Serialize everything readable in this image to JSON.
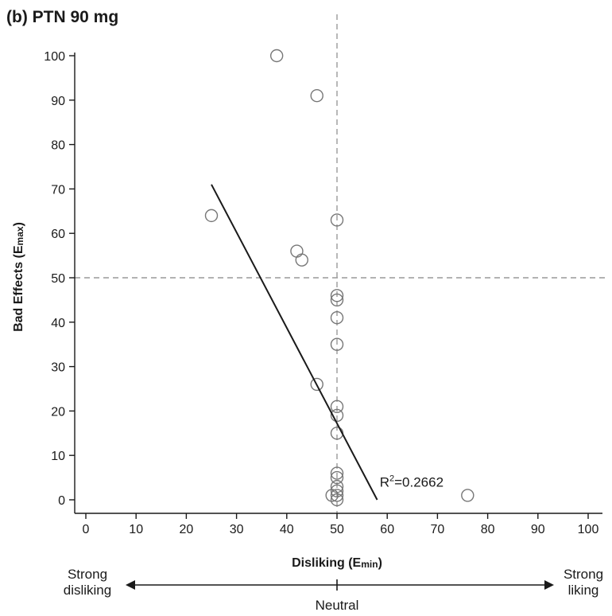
{
  "chart_data": {
    "type": "scatter",
    "title": "(b) PTN 90 mg",
    "xlabel": {
      "main": "Disliking (E",
      "sub": "min",
      "end": ")"
    },
    "ylabel": {
      "main": "Bad Effects (E",
      "sub": "max",
      "end": ")"
    },
    "xlim": [
      0,
      100
    ],
    "ylim": [
      0,
      100
    ],
    "x_ticks": [
      "0",
      "10",
      "20",
      "30",
      "40",
      "50",
      "60",
      "70",
      "80",
      "90",
      "100"
    ],
    "y_ticks": [
      "0",
      "10",
      "20",
      "30",
      "40",
      "50",
      "60",
      "70",
      "80",
      "90",
      "100"
    ],
    "reference_lines": {
      "x": 50,
      "y": 50
    },
    "points": [
      [
        38,
        100
      ],
      [
        46,
        91
      ],
      [
        25,
        64
      ],
      [
        50,
        63
      ],
      [
        42,
        56
      ],
      [
        43,
        54
      ],
      [
        50,
        46
      ],
      [
        50,
        45
      ],
      [
        50,
        41
      ],
      [
        50,
        35
      ],
      [
        46,
        26
      ],
      [
        50,
        21
      ],
      [
        50,
        19
      ],
      [
        50,
        15
      ],
      [
        50,
        6
      ],
      [
        50,
        5
      ],
      [
        50,
        3
      ],
      [
        50,
        2
      ],
      [
        50,
        1
      ],
      [
        49,
        1
      ],
      [
        50,
        0
      ],
      [
        76,
        1
      ]
    ],
    "regression_line": {
      "x1": 25,
      "y1": 71,
      "x2": 58,
      "y2": 0
    },
    "annotation": {
      "prefix": "R",
      "sup": "2",
      "rest": "=0.2662",
      "x": 58.5,
      "y": 4
    },
    "scale": {
      "left": [
        "Strong",
        "disliking"
      ],
      "center": "Neutral",
      "right": [
        "Strong",
        "liking"
      ]
    }
  }
}
